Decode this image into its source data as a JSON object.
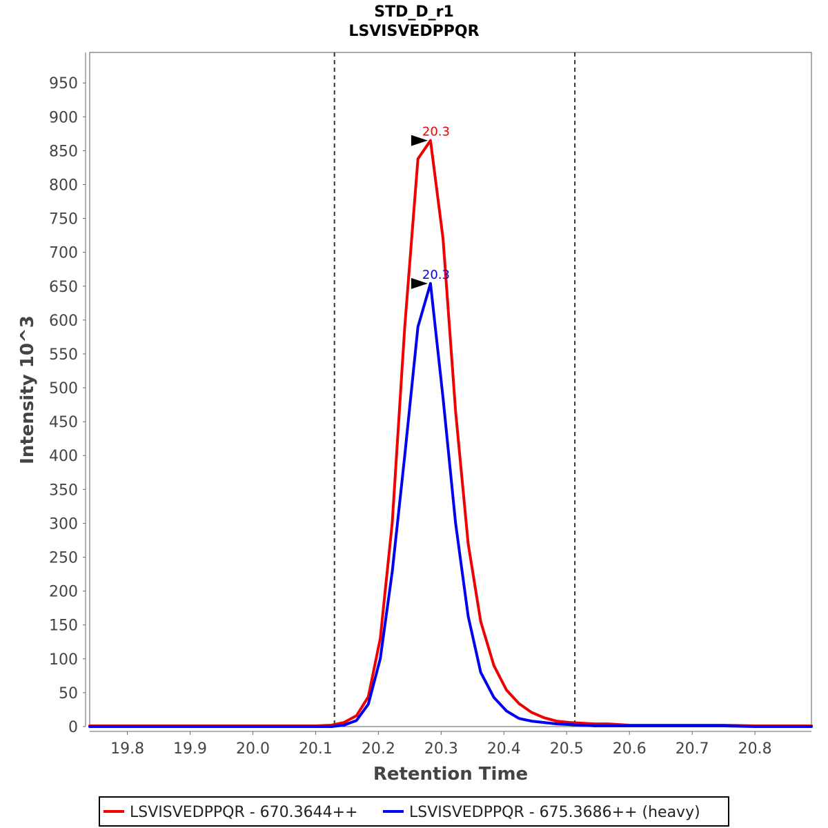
{
  "chart_data": {
    "type": "line",
    "title": "STD_D_r1",
    "subtitle": "LSVISVEDPPQR",
    "xlabel": "Retention Time",
    "ylabel": "Intensity 10^3",
    "xlim": [
      19.74,
      20.89
    ],
    "ylim": [
      0,
      995
    ],
    "x_ticks": [
      19.8,
      19.9,
      20.0,
      20.1,
      20.2,
      20.3,
      20.4,
      20.5,
      20.6,
      20.7,
      20.8
    ],
    "x_tick_labels": [
      "19.8",
      "19.9",
      "20.0",
      "20.1",
      "20.2",
      "20.3",
      "20.4",
      "20.5",
      "20.6",
      "20.7",
      "20.8"
    ],
    "y_ticks": [
      0,
      50,
      100,
      150,
      200,
      250,
      300,
      350,
      400,
      450,
      500,
      550,
      600,
      650,
      700,
      750,
      800,
      850,
      900,
      950
    ],
    "y_tick_labels": [
      "0",
      "50",
      "100",
      "150",
      "200",
      "250",
      "300",
      "350",
      "400",
      "450",
      "500",
      "550",
      "600",
      "650",
      "700",
      "750",
      "800",
      "850",
      "900",
      "950"
    ],
    "integration_boundaries": [
      20.13,
      20.513
    ],
    "grid": false,
    "legend_position": "bottom",
    "series": [
      {
        "name": "LSVISVEDPPQR - 670.3644++",
        "color": "#ee0000",
        "peak_label": "20.3",
        "peak": {
          "x": 20.283,
          "y": 865
        },
        "x": [
          19.74,
          19.8,
          19.9,
          20.0,
          20.05,
          20.1,
          20.125,
          20.145,
          20.165,
          20.184,
          20.203,
          20.222,
          20.242,
          20.263,
          20.283,
          20.303,
          20.323,
          20.343,
          20.363,
          20.384,
          20.404,
          20.424,
          20.444,
          20.464,
          20.484,
          20.505,
          20.525,
          20.545,
          20.565,
          20.6,
          20.65,
          20.7,
          20.75,
          20.8,
          20.89
        ],
        "y": [
          1,
          1,
          1,
          1,
          1,
          1,
          2,
          6,
          16,
          44,
          130,
          300,
          590,
          838,
          865,
          720,
          465,
          270,
          155,
          90,
          54,
          34,
          21,
          13,
          8,
          6,
          5,
          4,
          4,
          2,
          2,
          2,
          2,
          1,
          1
        ]
      },
      {
        "name": "LSVISVEDPPQR - 675.3686++ (heavy)",
        "color": "#0000ee",
        "peak_label": "20.3",
        "peak": {
          "x": 20.283,
          "y": 654
        },
        "x": [
          19.74,
          19.8,
          19.9,
          20.0,
          20.05,
          20.1,
          20.125,
          20.145,
          20.165,
          20.184,
          20.203,
          20.222,
          20.242,
          20.263,
          20.283,
          20.303,
          20.323,
          20.343,
          20.363,
          20.384,
          20.404,
          20.424,
          20.444,
          20.464,
          20.484,
          20.505,
          20.525,
          20.545,
          20.565,
          20.6,
          20.65,
          20.7,
          20.75,
          20.8,
          20.89
        ],
        "y": [
          0,
          0,
          0,
          0,
          0,
          0,
          0,
          2,
          9,
          33,
          100,
          228,
          400,
          590,
          654,
          485,
          300,
          163,
          80,
          43,
          23,
          12,
          8,
          6,
          4,
          3,
          2,
          1,
          1,
          1,
          1,
          1,
          1,
          0,
          0
        ]
      }
    ]
  }
}
